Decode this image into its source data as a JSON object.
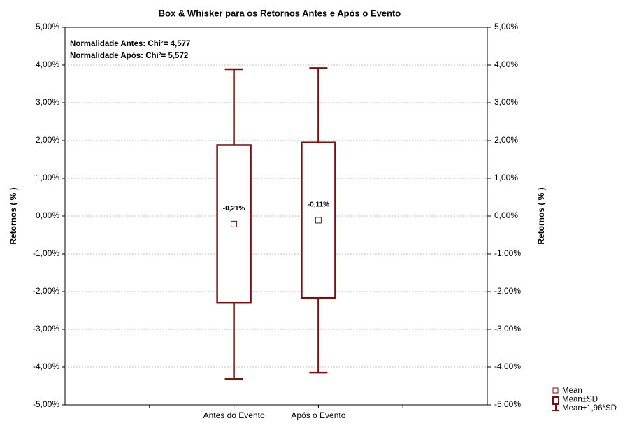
{
  "chart_data": {
    "type": "box",
    "title": "Box & Whisker para os Retornos Antes e Após o Evento",
    "y_label": "Retornos ( % )",
    "y2_label": "Retornos ( % )",
    "annotations": [
      "Normalidade Antes:  Chi²= 4,577",
      "Normalidade Após:  Chi²= 5,572"
    ],
    "categories": [
      null,
      "Antes do Evento",
      "Após o Evento",
      null
    ],
    "means": [
      null,
      -0.21,
      -0.11,
      null
    ],
    "value_labels": [
      null,
      "-0,21%",
      "-0,11%",
      null
    ],
    "sd_low": [
      null,
      -2.3,
      -2.17,
      null
    ],
    "sd_high": [
      null,
      1.88,
      1.95,
      null
    ],
    "ci_low": [
      null,
      -4.31,
      -4.15,
      null
    ],
    "ci_high": [
      null,
      3.89,
      3.92,
      null
    ],
    "color": "#7b1010",
    "legend": [
      "Mean",
      "Mean±SD",
      "Mean±1,96*SD"
    ],
    "legend_position": "bottom-right",
    "grid": true,
    "ylim": [
      -5,
      5
    ],
    "yticks": [
      {
        "value": -5,
        "label": "-5,00%"
      },
      {
        "value": -4,
        "label": "-4,00%"
      },
      {
        "value": -3,
        "label": "-3,00%"
      },
      {
        "value": -2,
        "label": "-2,00%"
      },
      {
        "value": -1,
        "label": "-1,00%"
      },
      {
        "value": 0,
        "label": "0,00%"
      },
      {
        "value": 1,
        "label": "1,00%"
      },
      {
        "value": 2,
        "label": "2,00%"
      },
      {
        "value": 3,
        "label": "3,00%"
      },
      {
        "value": 4,
        "label": "4,00%"
      },
      {
        "value": 5,
        "label": "5,00%"
      }
    ]
  }
}
